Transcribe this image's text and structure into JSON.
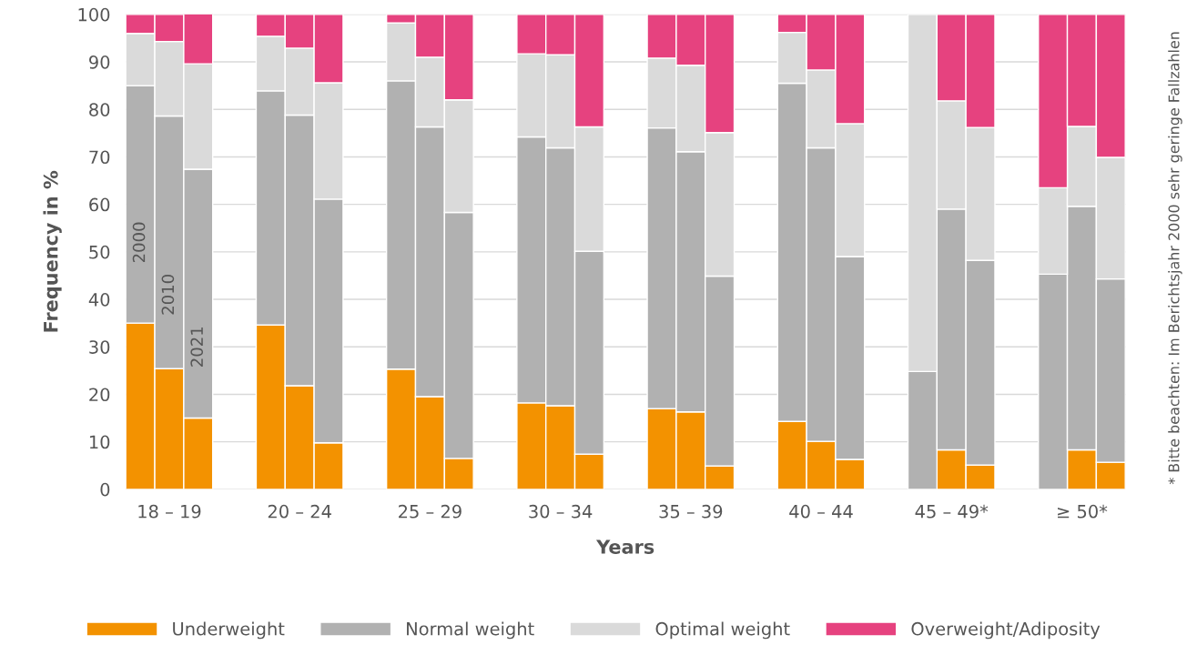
{
  "chart_data": {
    "type": "bar",
    "stacked": true,
    "xlabel": "Years",
    "ylabel": "Frequency in %",
    "categories": [
      null,
      "18 – 19",
      null,
      null,
      "20 – 24",
      null,
      null,
      "25 – 29",
      null,
      null,
      "30 – 34",
      null,
      null,
      "35 – 39",
      null,
      null,
      "40 – 44",
      null,
      null,
      "45 – 49*",
      null,
      null,
      "≥ 50*",
      null
    ],
    "series": [
      {
        "name": "Underweight",
        "color": "#f39200",
        "values": [
          35,
          25.4,
          15,
          34.6,
          21.8,
          9.8,
          25.3,
          19.5,
          6.5,
          18.2,
          17.6,
          7.4,
          17,
          16.3,
          4.9,
          14.3,
          10.1,
          6.3,
          0,
          8.3,
          5.1,
          0,
          8.3,
          5.7
        ]
      },
      {
        "name": "Normal weight",
        "color": "#b1b1b1",
        "values": [
          50,
          53.2,
          52.4,
          49.3,
          57,
          51.3,
          60.7,
          56.8,
          51.8,
          56,
          54.3,
          42.7,
          59.1,
          54.8,
          40,
          71.2,
          61.8,
          42.7,
          24.8,
          50.7,
          43.1,
          45.3,
          51.3,
          38.6
        ]
      },
      {
        "name": "Optimal weight",
        "color": "#dadada",
        "values": [
          11,
          15.7,
          22.2,
          11.5,
          14.1,
          24.5,
          12.2,
          14.7,
          23.7,
          17.5,
          19.6,
          26.2,
          14.7,
          18.2,
          30.2,
          10.7,
          16.4,
          28,
          75.2,
          22.8,
          28,
          18.2,
          16.8,
          25.6
        ]
      },
      {
        "name": "Overweight/Adiposity",
        "color": "#e6427f",
        "values": [
          4,
          5.7,
          10.5,
          4.6,
          7.1,
          14.4,
          1.8,
          9,
          18,
          8.3,
          8.5,
          23.7,
          9.2,
          10.7,
          24.9,
          3.8,
          11.7,
          23,
          0,
          18.2,
          23.8,
          36.5,
          23.6,
          30.1
        ]
      }
    ],
    "ylim": [
      0,
      100
    ],
    "yticks": [
      0,
      10,
      20,
      30,
      40,
      50,
      60,
      70,
      80,
      90,
      100
    ],
    "grid": "y",
    "legend": "bottom",
    "annotations": [
      "2000",
      "2010",
      "2021",
      "* Bitte beachten: Im Berichtsjahr 2000 sehr geringe Fallzahlen"
    ]
  }
}
